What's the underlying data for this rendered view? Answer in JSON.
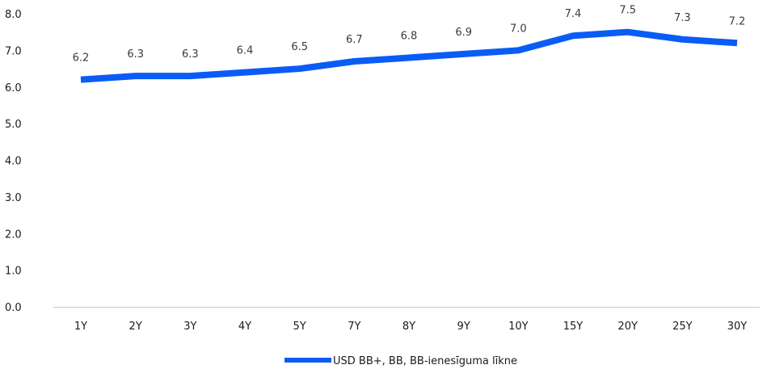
{
  "chart_data": {
    "type": "line",
    "categories": [
      "1Y",
      "2Y",
      "3Y",
      "4Y",
      "5Y",
      "7Y",
      "8Y",
      "9Y",
      "10Y",
      "15Y",
      "20Y",
      "25Y",
      "30Y"
    ],
    "series": [
      {
        "name": "USD BB+, BB, BB-ienesīguma līkne",
        "values": [
          6.2,
          6.3,
          6.3,
          6.4,
          6.5,
          6.7,
          6.8,
          6.9,
          7.0,
          7.4,
          7.5,
          7.3,
          7.2
        ],
        "color": "#0a5cf5"
      }
    ],
    "data_labels": [
      "6.2",
      "6.3",
      "6.3",
      "6.4",
      "6.5",
      "6.7",
      "6.8",
      "6.9",
      "7.0",
      "7.4",
      "7.5",
      "7.3",
      "7.2"
    ],
    "y_ticks": [
      "0.0",
      "1.0",
      "2.0",
      "3.0",
      "4.0",
      "5.0",
      "6.0",
      "7.0",
      "8.0"
    ],
    "ylim": [
      0,
      8
    ],
    "grid": false,
    "legend_position": "bottom-center"
  }
}
